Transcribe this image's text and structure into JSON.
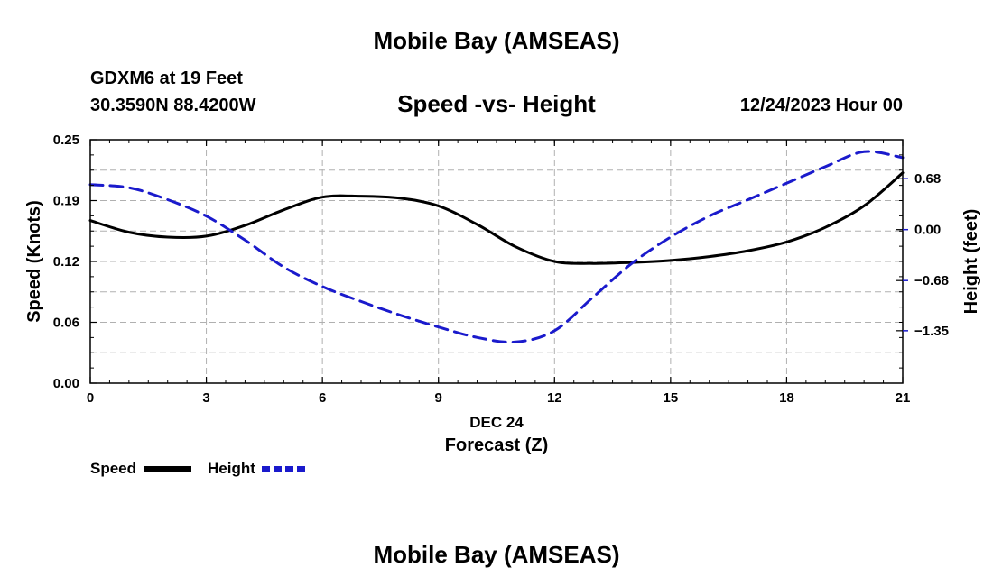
{
  "page": {
    "title_top": "Mobile Bay (AMSEAS)",
    "station_line1": "GDXM6 at 19 Feet",
    "station_line2": "30.3590N  88.4200W",
    "subtitle": "Speed -vs- Height",
    "datetime": "12/24/2023 Hour 00",
    "title_bottom": "Mobile Bay (AMSEAS)"
  },
  "colors": {
    "speed": "#000000",
    "height": "#1a1acc",
    "grid": "#b0b0b0"
  },
  "chart_data": {
    "type": "line",
    "title": "Speed -vs- Height",
    "xlabel_date": "DEC 24",
    "xlabel": "Forecast (Z)",
    "ylabel_left": "Speed (Knots)",
    "ylabel_right": "Height (feet)",
    "xlim": [
      0,
      21
    ],
    "ylim_left": [
      0,
      0.25
    ],
    "ylim_right": [
      -2.05,
      1.2
    ],
    "x_ticks": [
      0,
      3,
      6,
      9,
      12,
      15,
      18,
      21
    ],
    "x_tick_labels": [
      "0",
      "3",
      "6",
      "9",
      "12",
      "15",
      "18",
      "21"
    ],
    "y_left_ticks": [
      0,
      0.0625,
      0.125,
      0.1875,
      0.25
    ],
    "y_left_tick_labels": [
      "0.00",
      "0.06",
      "0.12",
      "0.19",
      "0.25"
    ],
    "y_right_ticks": [
      0.68,
      0.0,
      -0.68,
      -1.35
    ],
    "y_right_tick_labels": [
      "0.68",
      "0.00",
      "−0.68",
      "−1.35"
    ],
    "legend": {
      "position": "bottom-left",
      "speed_label": "Speed",
      "height_label": "Height"
    },
    "series": [
      {
        "name": "Speed",
        "axis": "left",
        "style": "solid",
        "x": [
          0,
          1,
          2,
          3,
          4,
          5,
          6,
          7,
          8,
          9,
          10,
          11,
          12,
          13,
          14,
          15,
          16,
          17,
          18,
          19,
          20,
          21
        ],
        "values": [
          0.167,
          0.155,
          0.15,
          0.151,
          0.162,
          0.178,
          0.191,
          0.192,
          0.19,
          0.182,
          0.163,
          0.14,
          0.125,
          0.123,
          0.124,
          0.126,
          0.13,
          0.136,
          0.145,
          0.16,
          0.182,
          0.216
        ]
      },
      {
        "name": "Height",
        "axis": "right",
        "style": "dashed",
        "x": [
          0,
          1,
          2,
          3,
          4,
          5,
          6,
          7,
          8,
          9,
          10,
          11,
          12,
          13,
          14,
          15,
          16,
          17,
          18,
          19,
          20,
          21
        ],
        "values": [
          0.6,
          0.56,
          0.4,
          0.18,
          -0.14,
          -0.5,
          -0.76,
          -0.96,
          -1.14,
          -1.3,
          -1.44,
          -1.5,
          -1.35,
          -0.9,
          -0.45,
          -0.1,
          0.18,
          0.4,
          0.62,
          0.84,
          1.04,
          0.96
        ]
      }
    ]
  }
}
